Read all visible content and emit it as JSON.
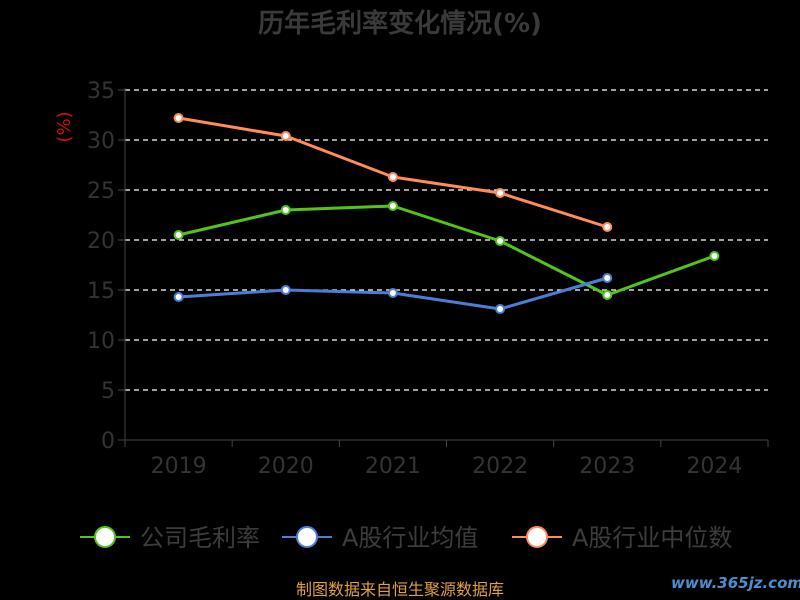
{
  "chart_data": {
    "type": "line",
    "title": "历年毛利率变化情况(%)",
    "ylabel": "(%)",
    "categories": [
      "2019",
      "2020",
      "2021",
      "2022",
      "2023",
      "2024"
    ],
    "ylim": [
      0,
      35
    ],
    "yticks": [
      0,
      5,
      10,
      15,
      20,
      25,
      30,
      35
    ],
    "grid": true,
    "legend_position": "bottom",
    "series": [
      {
        "name": "公司毛利率",
        "color": "#52c41a",
        "values": [
          20.5,
          23.0,
          23.4,
          19.9,
          14.5,
          18.4
        ]
      },
      {
        "name": "A股行业均值",
        "color": "#4a7fd9",
        "values": [
          14.3,
          15.0,
          14.7,
          13.1,
          16.2,
          null
        ]
      },
      {
        "name": "A股行业中位数",
        "color": "#ff8c5a",
        "values": [
          32.2,
          30.4,
          26.3,
          24.7,
          21.3,
          null
        ]
      }
    ]
  },
  "footer": {
    "source": "制图数据来自恒生聚源数据库",
    "watermark": "www.365jz.com"
  }
}
